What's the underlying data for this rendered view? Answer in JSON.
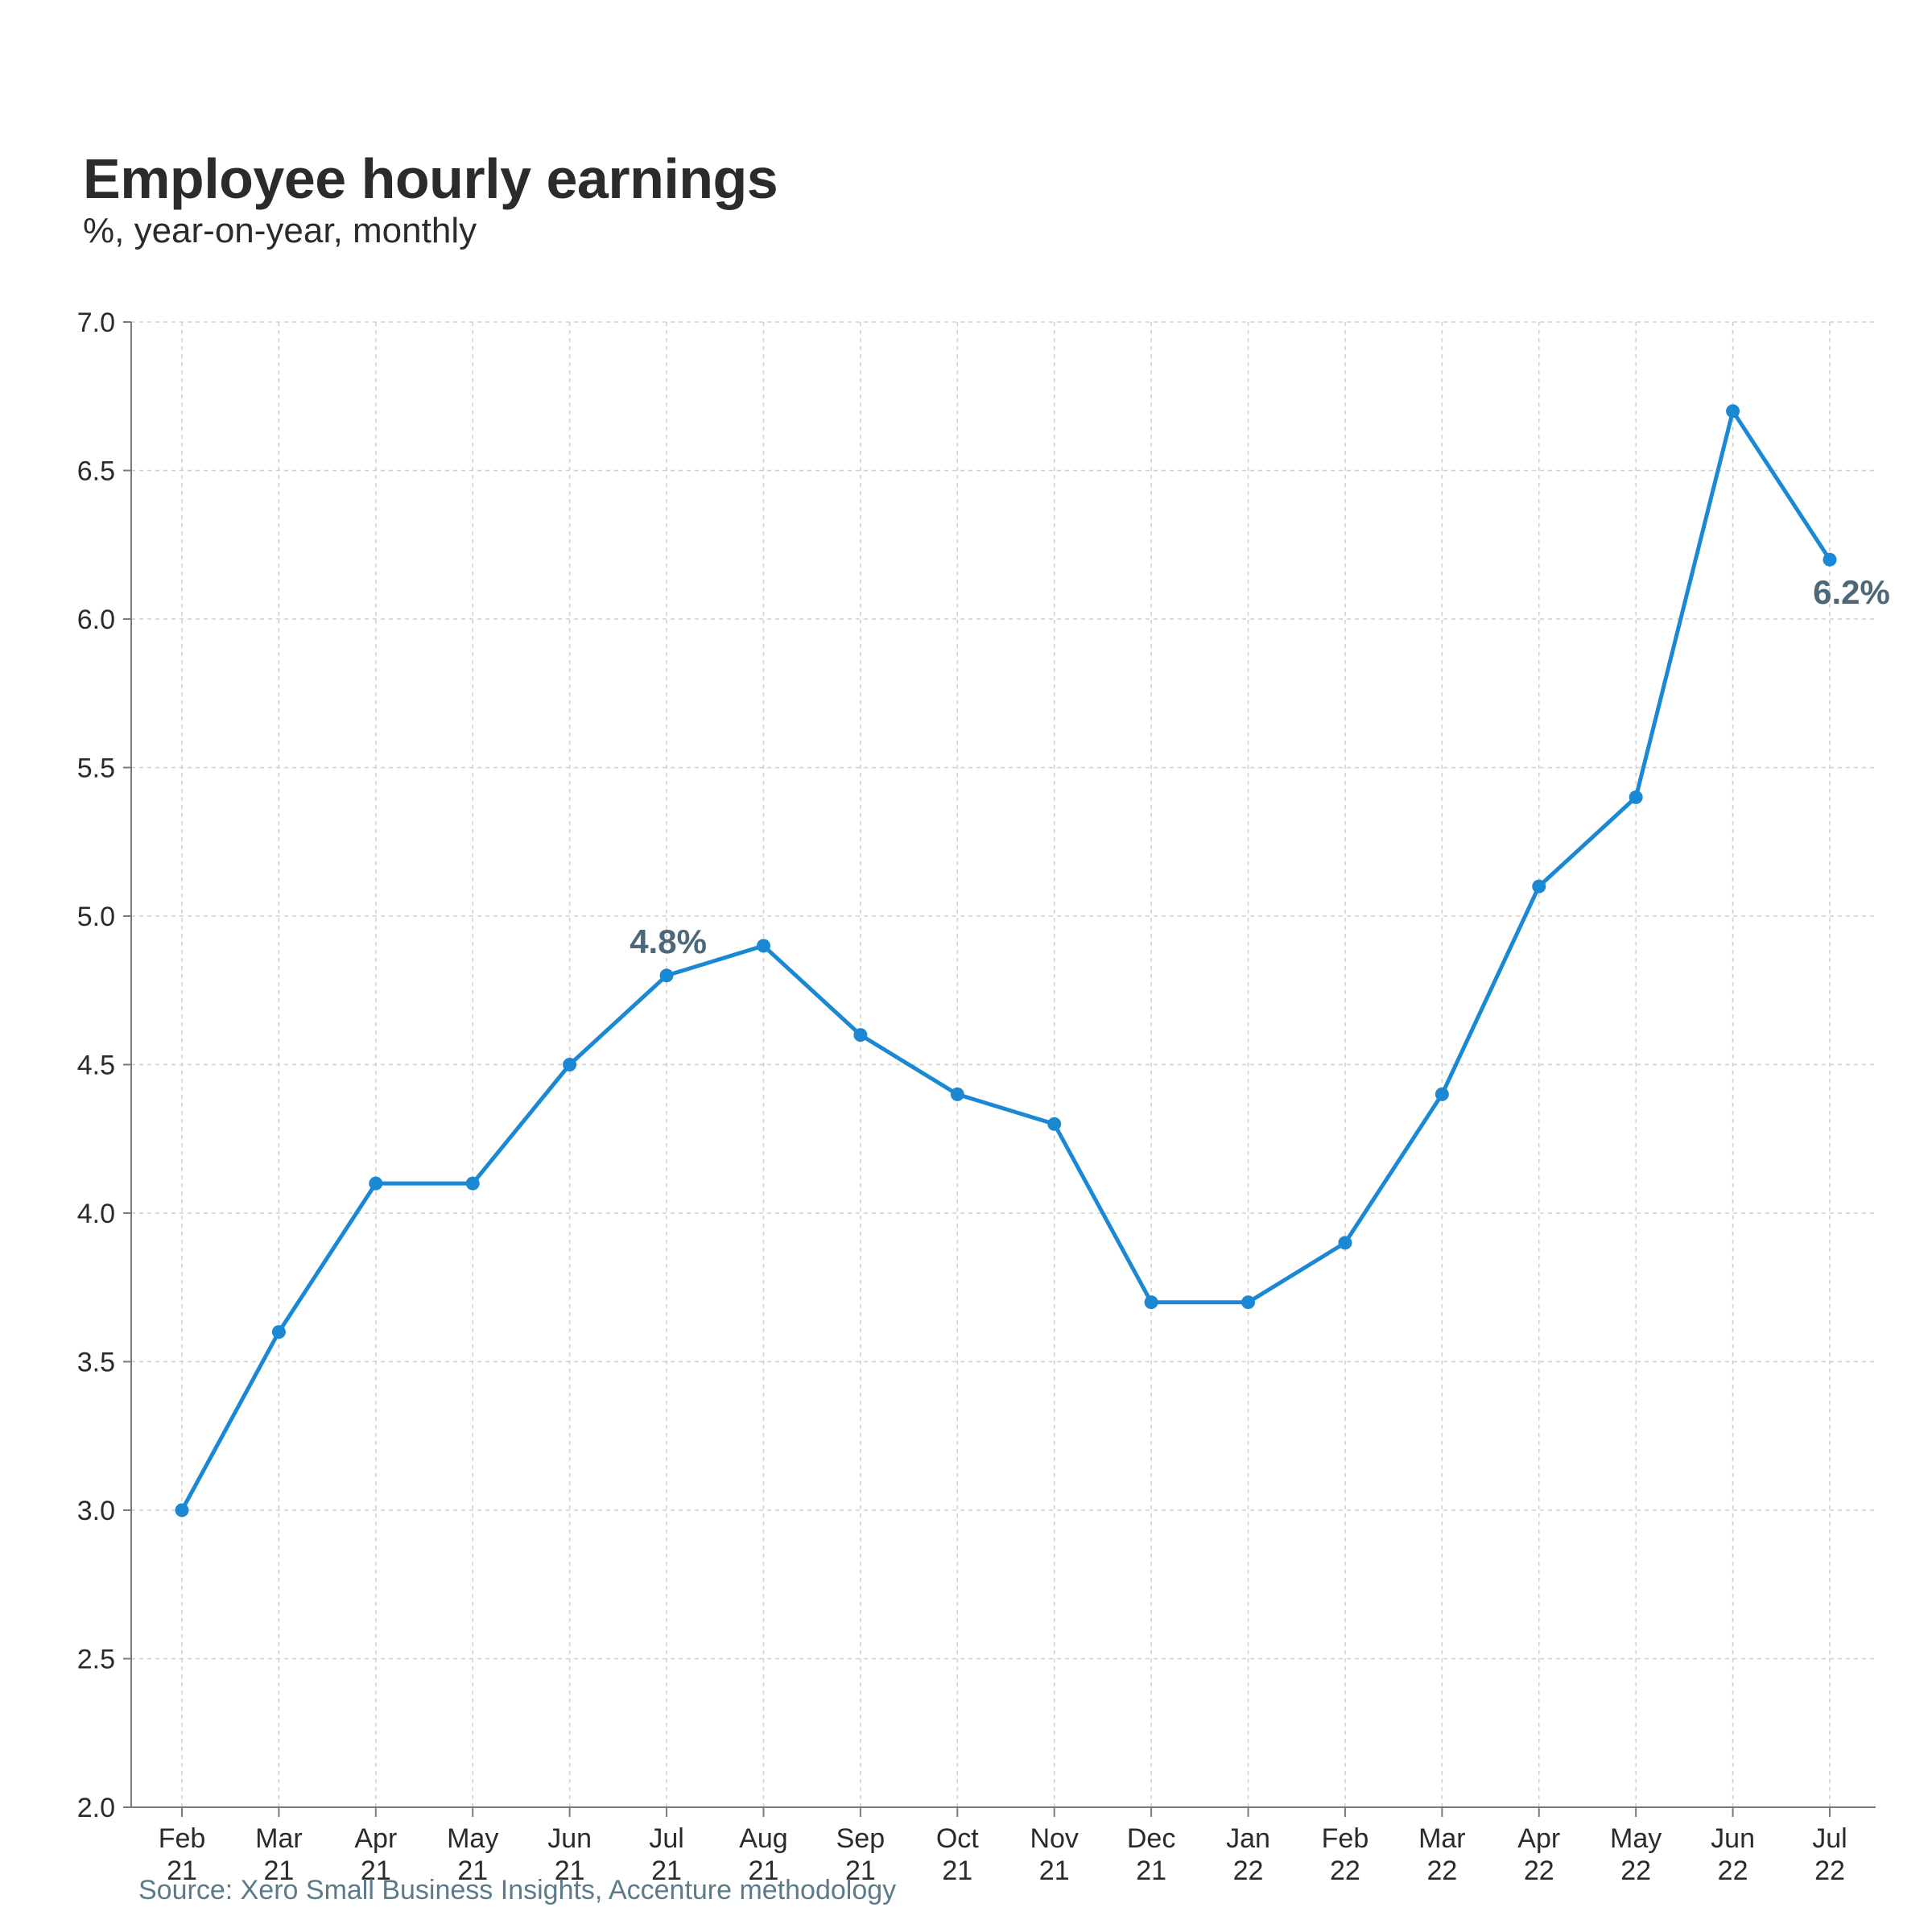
{
  "chart_data": {
    "type": "line",
    "title": "Employee hourly earnings",
    "subtitle": "%, year-on-year, monthly",
    "source": "Source: Xero Small Business Insights, Accenture methodology",
    "xlabel": "",
    "ylabel": "",
    "categories": [
      [
        "Feb",
        "21"
      ],
      [
        "Mar",
        "21"
      ],
      [
        "Apr",
        "21"
      ],
      [
        "May",
        "21"
      ],
      [
        "Jun",
        "21"
      ],
      [
        "Jul",
        "21"
      ],
      [
        "Aug",
        "21"
      ],
      [
        "Sep",
        "21"
      ],
      [
        "Oct",
        "21"
      ],
      [
        "Nov",
        "21"
      ],
      [
        "Dec",
        "21"
      ],
      [
        "Jan",
        "22"
      ],
      [
        "Feb",
        "22"
      ],
      [
        "Mar",
        "22"
      ],
      [
        "Apr",
        "22"
      ],
      [
        "May",
        "22"
      ],
      [
        "Jun",
        "22"
      ],
      [
        "Jul",
        "22"
      ]
    ],
    "series": [
      {
        "color": "#1b88d4",
        "values": [
          3.0,
          3.6,
          4.1,
          4.1,
          4.5,
          4.8,
          4.9,
          4.6,
          4.4,
          4.3,
          3.7,
          3.7,
          3.9,
          4.4,
          5.1,
          5.4,
          6.7,
          6.2
        ]
      }
    ],
    "ylim": [
      2.0,
      7.0
    ],
    "yticks": [
      "2.0",
      "2.5",
      "3.0",
      "3.5",
      "4.0",
      "4.5",
      "5.0",
      "5.5",
      "6.0",
      "6.5",
      "7.0"
    ],
    "grid": true,
    "legend": "none",
    "annotations": [
      {
        "index": 5,
        "text": "4.8%"
      },
      {
        "index": 17,
        "text": "6.2%"
      }
    ]
  }
}
